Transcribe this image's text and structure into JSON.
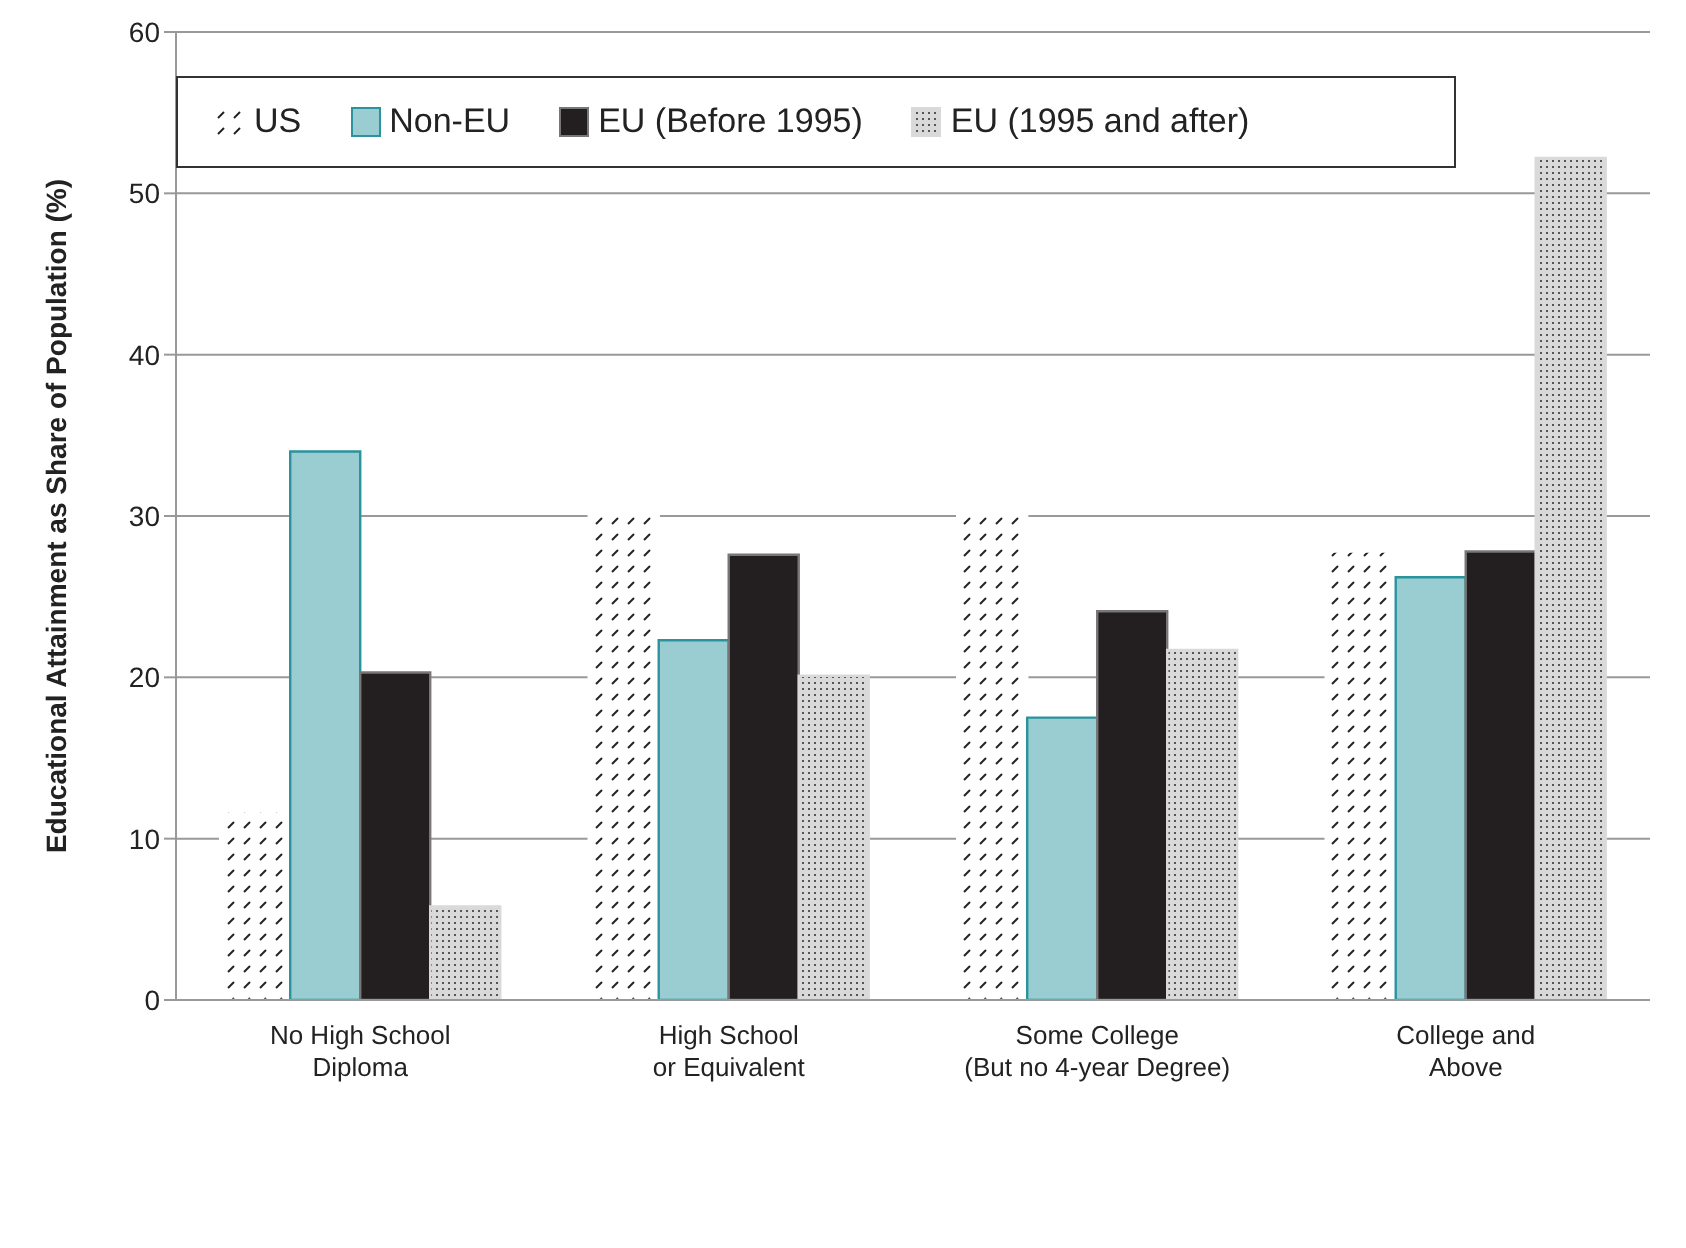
{
  "chart_data": {
    "type": "bar",
    "ylabel": "Educational Attainment as Share of Population (%)",
    "categories": [
      "No High School\nDiploma",
      "High School\nor Equivalent",
      "Some College\n(But no 4-year Degree)",
      "College and\nAbove"
    ],
    "series": [
      {
        "name": "US",
        "color": "#ffffff",
        "values": [
          11.7,
          30.2,
          30.1,
          27.8
        ]
      },
      {
        "name": "Non-EU",
        "color": "#99cdd2",
        "values": [
          34.0,
          22.3,
          17.5,
          26.2
        ]
      },
      {
        "name": "EU (Before 1995)",
        "color": "#231f20",
        "values": [
          20.3,
          27.6,
          24.1,
          27.8
        ]
      },
      {
        "name": "EU (1995 and after)",
        "color": "#d9d9d9",
        "values": [
          5.8,
          20.1,
          21.7,
          52.2
        ]
      }
    ],
    "ylim": [
      0,
      60
    ],
    "yticks": [
      0,
      10,
      20,
      30,
      40,
      50,
      60
    ],
    "grid": "y",
    "legend": "top"
  }
}
